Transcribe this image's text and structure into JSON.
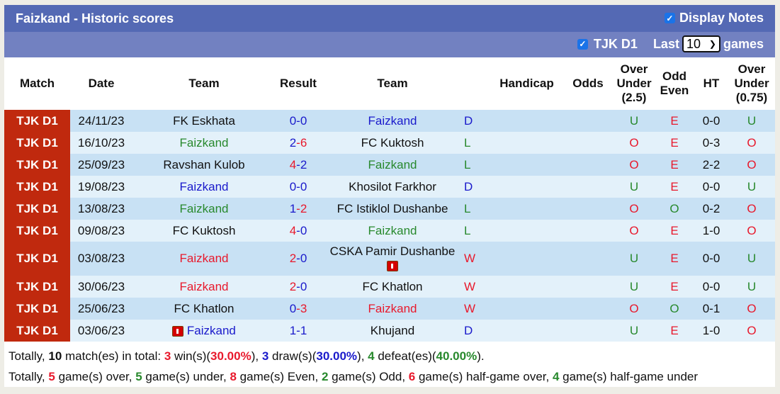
{
  "header": {
    "title": "Faizkand - Historic scores",
    "display_notes_label": "Display Notes",
    "display_notes_checked": true
  },
  "filter": {
    "league_label": "TJK D1",
    "league_checked": true,
    "last_label": "Last",
    "games_count": "10",
    "games_label": "games"
  },
  "columns": {
    "match": "Match",
    "date": "Date",
    "team1": "Team",
    "result": "Result",
    "team2": "Team",
    "handicap": "Handicap",
    "odds": "Odds",
    "ou_l1": "Over",
    "ou_l2": "Under",
    "ou_l3": "(2.5)",
    "oe_l1": "Odd",
    "oe_l2": "Even",
    "ht": "HT",
    "ou2_l1": "Over",
    "ou2_l2": "Under",
    "ou2_l3": "(0.75)"
  },
  "rows": [
    {
      "match": "TJK D1",
      "date": "24/11/23",
      "team1": "FK Eskhata",
      "team1_color": "black",
      "s1": "0",
      "s2": "0",
      "s1_color": "blue",
      "s2_color": "blue",
      "team2": "Faizkand",
      "team2_color": "blue",
      "wl": "D",
      "wl_color": "blue",
      "handicap": "",
      "odds": "",
      "ou": "U",
      "ou_color": "green",
      "oe": "E",
      "oe_color": "red",
      "ht": "0-0",
      "ou2": "U",
      "ou2_color": "green"
    },
    {
      "match": "TJK D1",
      "date": "16/10/23",
      "team1": "Faizkand",
      "team1_color": "green",
      "s1": "2",
      "s2": "6",
      "s1_color": "blue",
      "s2_color": "red",
      "team2": "FC Kuktosh",
      "team2_color": "black",
      "wl": "L",
      "wl_color": "green",
      "handicap": "",
      "odds": "",
      "ou": "O",
      "ou_color": "red",
      "oe": "E",
      "oe_color": "red",
      "ht": "0-3",
      "ou2": "O",
      "ou2_color": "red"
    },
    {
      "match": "TJK D1",
      "date": "25/09/23",
      "team1": "Ravshan Kulob",
      "team1_color": "black",
      "s1": "4",
      "s2": "2",
      "s1_color": "red",
      "s2_color": "blue",
      "team2": "Faizkand",
      "team2_color": "green",
      "wl": "L",
      "wl_color": "green",
      "handicap": "",
      "odds": "",
      "ou": "O",
      "ou_color": "red",
      "oe": "E",
      "oe_color": "red",
      "ht": "2-2",
      "ou2": "O",
      "ou2_color": "red"
    },
    {
      "match": "TJK D1",
      "date": "19/08/23",
      "team1": "Faizkand",
      "team1_color": "blue",
      "s1": "0",
      "s2": "0",
      "s1_color": "blue",
      "s2_color": "blue",
      "team2": "Khosilot Farkhor",
      "team2_color": "black",
      "wl": "D",
      "wl_color": "blue",
      "handicap": "",
      "odds": "",
      "ou": "U",
      "ou_color": "green",
      "oe": "E",
      "oe_color": "red",
      "ht": "0-0",
      "ou2": "U",
      "ou2_color": "green"
    },
    {
      "match": "TJK D1",
      "date": "13/08/23",
      "team1": "Faizkand",
      "team1_color": "green",
      "s1": "1",
      "s2": "2",
      "s1_color": "blue",
      "s2_color": "red",
      "team2": "FC Istiklol Dushanbe",
      "team2_color": "black",
      "wl": "L",
      "wl_color": "green",
      "handicap": "",
      "odds": "",
      "ou": "O",
      "ou_color": "red",
      "oe": "O",
      "oe_color": "green",
      "ht": "0-2",
      "ou2": "O",
      "ou2_color": "red"
    },
    {
      "match": "TJK D1",
      "date": "09/08/23",
      "team1": "FC Kuktosh",
      "team1_color": "black",
      "s1": "4",
      "s2": "0",
      "s1_color": "red",
      "s2_color": "blue",
      "team2": "Faizkand",
      "team2_color": "green",
      "wl": "L",
      "wl_color": "green",
      "handicap": "",
      "odds": "",
      "ou": "O",
      "ou_color": "red",
      "oe": "E",
      "oe_color": "red",
      "ht": "1-0",
      "ou2": "O",
      "ou2_color": "red"
    },
    {
      "match": "TJK D1",
      "date": "03/08/23",
      "team1": "Faizkand",
      "team1_color": "red",
      "s1": "2",
      "s2": "0",
      "s1_color": "red",
      "s2_color": "blue",
      "team2": "CSKA Pamir Dushanbe",
      "team2_color": "black",
      "team2_red_card": true,
      "wl": "W",
      "wl_color": "red",
      "handicap": "",
      "odds": "",
      "ou": "U",
      "ou_color": "green",
      "oe": "E",
      "oe_color": "red",
      "ht": "0-0",
      "ou2": "U",
      "ou2_color": "green"
    },
    {
      "match": "TJK D1",
      "date": "30/06/23",
      "team1": "Faizkand",
      "team1_color": "red",
      "s1": "2",
      "s2": "0",
      "s1_color": "red",
      "s2_color": "blue",
      "team2": "FC Khatlon",
      "team2_color": "black",
      "wl": "W",
      "wl_color": "red",
      "handicap": "",
      "odds": "",
      "ou": "U",
      "ou_color": "green",
      "oe": "E",
      "oe_color": "red",
      "ht": "0-0",
      "ou2": "U",
      "ou2_color": "green"
    },
    {
      "match": "TJK D1",
      "date": "25/06/23",
      "team1": "FC Khatlon",
      "team1_color": "black",
      "s1": "0",
      "s2": "3",
      "s1_color": "blue",
      "s2_color": "red",
      "team2": "Faizkand",
      "team2_color": "red",
      "wl": "W",
      "wl_color": "red",
      "handicap": "",
      "odds": "",
      "ou": "O",
      "ou_color": "red",
      "oe": "O",
      "oe_color": "green",
      "ht": "0-1",
      "ou2": "O",
      "ou2_color": "red"
    },
    {
      "match": "TJK D1",
      "date": "03/06/23",
      "team1": "Faizkand",
      "team1_color": "blue",
      "team1_red_card": true,
      "s1": "1",
      "s2": "1",
      "s1_color": "blue",
      "s2_color": "blue",
      "team2": "Khujand",
      "team2_color": "black",
      "wl": "D",
      "wl_color": "blue",
      "handicap": "",
      "odds": "",
      "ou": "U",
      "ou_color": "green",
      "oe": "E",
      "oe_color": "red",
      "ht": "1-0",
      "ou2": "O",
      "ou2_color": "red"
    }
  ],
  "summary": {
    "line1": {
      "p1": "Totally, ",
      "total": "10",
      "p2": " match(es) in total: ",
      "wins": "3",
      "p3": " win(s)(",
      "win_pct": "30.00%",
      "p4": "), ",
      "draws": "3",
      "p5": " draw(s)(",
      "draw_pct": "30.00%",
      "p6": "), ",
      "defeats": "4",
      "p7": " defeat(es)(",
      "defeat_pct": "40.00%",
      "p8": ")."
    },
    "line2": {
      "p1": "Totally, ",
      "over": "5",
      "p2": " game(s) over, ",
      "under": "5",
      "p3": " game(s) under, ",
      "even": "8",
      "p4": " game(s) Even, ",
      "odd": "2",
      "p5": " game(s) Odd, ",
      "hg_over": "6",
      "p6": " game(s) half-game over, ",
      "hg_under": "4",
      "p7": " game(s) half-game under"
    }
  },
  "colors": {
    "title_bar": "#5469b4",
    "sub_bar": "#7281c1",
    "match_badge": "#c0290e",
    "row_odd": "#c8e1f4",
    "row_even": "#e3f1fa",
    "blue": "#1a1acb",
    "red": "#e8192c",
    "green": "#28892d"
  }
}
